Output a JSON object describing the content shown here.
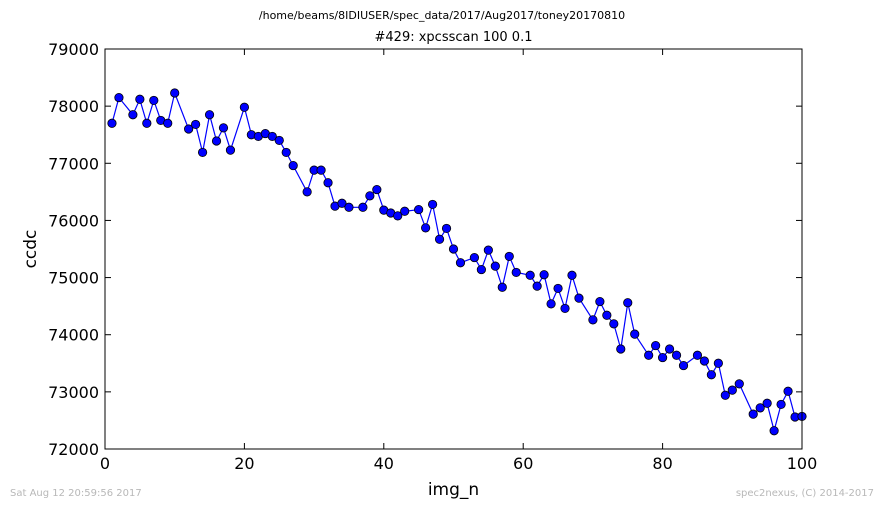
{
  "header": {
    "path": "/home/beams/8IDIUSER/spec_data/2017/Aug2017/toney20170810",
    "scan": "#429: xpcsscan 100 0.1"
  },
  "footer": {
    "timestamp": "Sat Aug 12 20:59:56 2017",
    "credit": "spec2nexus, (C) 2014-2017"
  },
  "chart_data": {
    "type": "line",
    "title": "#429: xpcsscan 100 0.1",
    "xlabel": "img_n",
    "ylabel": "ccdc",
    "xlim": [
      0,
      100
    ],
    "ylim": [
      72000,
      79000
    ],
    "xticks": [
      "0",
      "20",
      "40",
      "60",
      "80",
      "100"
    ],
    "yticks": [
      "72000",
      "73000",
      "74000",
      "75000",
      "76000",
      "77000",
      "78000",
      "79000"
    ],
    "grid": false,
    "legend": "none",
    "color": "#0000ff",
    "marker": "circle",
    "series": [
      {
        "x": [
          1,
          2,
          4,
          5,
          6,
          7,
          8,
          9,
          10,
          12,
          13,
          14,
          15,
          16,
          17,
          18,
          20,
          21,
          22,
          23,
          24,
          25,
          26,
          27,
          29,
          30,
          31,
          32,
          33,
          34,
          35,
          37,
          38,
          39,
          40,
          41,
          42,
          43,
          45,
          46,
          47,
          48,
          49,
          50,
          51,
          53,
          54,
          55,
          56,
          57,
          58,
          59,
          61,
          62,
          63,
          64,
          65,
          66,
          67,
          68,
          70,
          71,
          72,
          73,
          74,
          75,
          76,
          78,
          79,
          80,
          81,
          82,
          83,
          85,
          86,
          87,
          88,
          89,
          90,
          91,
          93,
          94,
          95,
          96,
          97,
          98,
          99,
          100
        ],
        "y": [
          77700,
          78150,
          77850,
          78120,
          77700,
          78100,
          77750,
          77700,
          78230,
          77600,
          77680,
          77190,
          77850,
          77390,
          77620,
          77230,
          77980,
          77500,
          77470,
          77520,
          77470,
          77400,
          77190,
          76960,
          76500,
          76880,
          76880,
          76660,
          76250,
          76300,
          76230,
          76230,
          76430,
          76540,
          76180,
          76130,
          76080,
          76160,
          76190,
          75870,
          76280,
          75670,
          75860,
          75500,
          75260,
          75350,
          75140,
          75480,
          75200,
          74830,
          75370,
          75090,
          75040,
          74850,
          75050,
          74540,
          74810,
          74460,
          75040,
          74640,
          74260,
          74580,
          74340,
          74190,
          73750,
          74560,
          74010,
          73640,
          73810,
          73600,
          73750,
          73640,
          73460,
          73640,
          73540,
          73300,
          73500,
          72940,
          73030,
          73140,
          72610,
          72720,
          72800,
          72320,
          72780,
          73010,
          72560,
          72570
        ]
      }
    ]
  }
}
